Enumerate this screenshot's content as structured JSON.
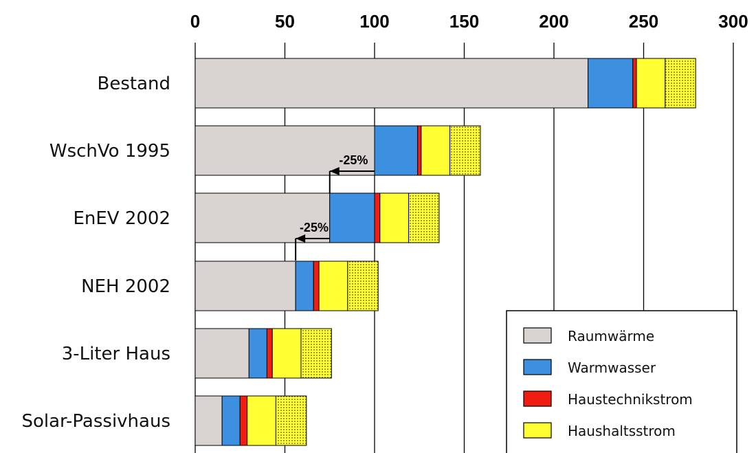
{
  "chart_data": {
    "type": "bar",
    "orientation": "horizontal",
    "stacked": true,
    "categories": [
      "Bestand",
      "WschVo 1995",
      "EnEV 2002",
      "NEH 2002",
      "3-Liter Haus",
      "Solar-Passivhaus"
    ],
    "xticks": [
      "0",
      "50",
      "100",
      "150",
      "200",
      "250",
      "300"
    ],
    "xlim": [
      0,
      300
    ],
    "grid": "vertical",
    "legend_position": "bottom-right",
    "series": [
      {
        "name": "Raumwärme",
        "color": "#d9d4d1",
        "pattern": "solid",
        "values": [
          219,
          100,
          75,
          56,
          30,
          15
        ]
      },
      {
        "name": "Warmwasser",
        "color": "#3d8fe0",
        "pattern": "solid",
        "values": [
          25,
          24,
          25,
          10,
          10,
          10
        ]
      },
      {
        "name": "Haustechnikstrom",
        "color": "#f01e10",
        "pattern": "solid",
        "values": [
          2,
          2,
          3,
          3,
          3,
          4
        ]
      },
      {
        "name": "Haushaltsstrom",
        "color": "#ffff33",
        "pattern": "solid",
        "values": [
          16,
          16,
          16,
          16,
          16,
          16
        ]
      },
      {
        "name": "",
        "color": "#ffff33",
        "pattern": "dotted",
        "values": [
          17,
          17,
          17,
          17,
          17,
          17
        ]
      }
    ],
    "annotations": [
      {
        "text": "-25%",
        "category": "WschVo 1995",
        "from": 100,
        "to": 75
      },
      {
        "text": "-25%",
        "category": "EnEV 2002",
        "from": 75,
        "to": 56
      }
    ]
  }
}
